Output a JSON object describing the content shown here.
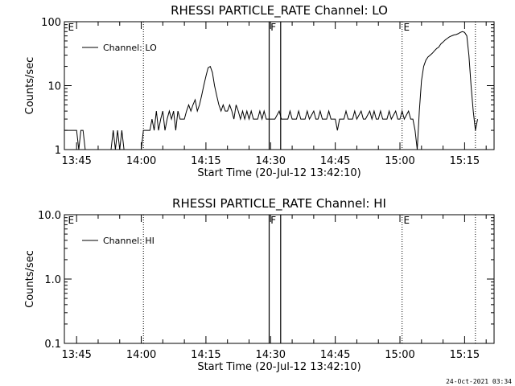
{
  "footer_stamp": "24-Oct-2021 03:34",
  "chart_data": [
    {
      "type": "line",
      "title": "RHESSI PARTICLE_RATE Channel: LO",
      "xlabel": "Start Time (20-Jul-12 13:42:10)",
      "ylabel": "Counts/sec",
      "yscale": "log",
      "ylim": [
        1,
        100
      ],
      "y_ticks": [
        1,
        10,
        100
      ],
      "y_tick_labels": [
        "1",
        "10",
        "100"
      ],
      "xlim": [
        "13:42:10",
        "15:21:50"
      ],
      "x_ticks": [
        "13:45",
        "14:00",
        "14:15",
        "14:30",
        "14:45",
        "15:00",
        "15:15"
      ],
      "legend": {
        "placement": "top-left",
        "entries": [
          "Channel: LO"
        ]
      },
      "dotted_markers": [
        "14:00:30",
        "15:00:30",
        "15:17:30"
      ],
      "solid_markers": [
        "14:29:40",
        "14:32:20"
      ],
      "edge_labels": [
        {
          "text": "E",
          "at": "13:43:00"
        },
        {
          "text": "F",
          "at": "14:30:00"
        },
        {
          "text": "E",
          "at": "15:00:50"
        }
      ],
      "series": [
        {
          "name": "Channel: LO",
          "points": [
            [
              "13:42:10",
              2
            ],
            [
              "13:45:00",
              2
            ],
            [
              "13:45:30",
              1
            ],
            [
              "13:46:00",
              2
            ],
            [
              "13:46:30",
              2
            ],
            [
              "13:47:00",
              1
            ],
            [
              "13:53:00",
              1
            ],
            [
              "13:53:30",
              2
            ],
            [
              "13:54:00",
              1
            ],
            [
              "13:54:30",
              2
            ],
            [
              "13:55:00",
              1
            ],
            [
              "13:55:30",
              2
            ],
            [
              "13:56:00",
              1
            ],
            [
              "14:00:00",
              1
            ],
            [
              "14:00:30",
              2
            ],
            [
              "14:02:00",
              2
            ],
            [
              "14:02:30",
              3
            ],
            [
              "14:03:00",
              2
            ],
            [
              "14:03:30",
              4
            ],
            [
              "14:04:00",
              2
            ],
            [
              "14:04:30",
              3
            ],
            [
              "14:05:00",
              4
            ],
            [
              "14:05:30",
              2
            ],
            [
              "14:06:00",
              3
            ],
            [
              "14:06:30",
              4
            ],
            [
              "14:07:00",
              3
            ],
            [
              "14:07:30",
              4
            ],
            [
              "14:08:00",
              2
            ],
            [
              "14:08:30",
              4
            ],
            [
              "14:09:00",
              3
            ],
            [
              "14:10:00",
              3
            ],
            [
              "14:10:30",
              4
            ],
            [
              "14:11:00",
              5
            ],
            [
              "14:11:30",
              4
            ],
            [
              "14:12:00",
              5
            ],
            [
              "14:12:30",
              6
            ],
            [
              "14:13:00",
              4
            ],
            [
              "14:13:30",
              5
            ],
            [
              "14:14:00",
              7
            ],
            [
              "14:14:30",
              10
            ],
            [
              "14:15:00",
              14
            ],
            [
              "14:15:30",
              19
            ],
            [
              "14:16:00",
              20
            ],
            [
              "14:16:30",
              16
            ],
            [
              "14:17:00",
              10
            ],
            [
              "14:17:30",
              7
            ],
            [
              "14:18:00",
              5
            ],
            [
              "14:18:30",
              4
            ],
            [
              "14:19:00",
              5
            ],
            [
              "14:19:30",
              4
            ],
            [
              "14:20:00",
              4
            ],
            [
              "14:20:30",
              5
            ],
            [
              "14:21:00",
              4
            ],
            [
              "14:21:30",
              3
            ],
            [
              "14:22:00",
              5
            ],
            [
              "14:22:30",
              4
            ],
            [
              "14:23:00",
              3
            ],
            [
              "14:23:30",
              4
            ],
            [
              "14:24:00",
              3
            ],
            [
              "14:24:30",
              4
            ],
            [
              "14:25:00",
              3
            ],
            [
              "14:25:30",
              4
            ],
            [
              "14:26:00",
              3
            ],
            [
              "14:27:00",
              3
            ],
            [
              "14:27:30",
              4
            ],
            [
              "14:28:00",
              3
            ],
            [
              "14:28:30",
              4
            ],
            [
              "14:29:00",
              3
            ],
            [
              "14:30:00",
              3
            ],
            [
              "14:31:00",
              3
            ],
            [
              "14:32:00",
              4
            ],
            [
              "14:32:30",
              3
            ],
            [
              "14:33:00",
              3
            ],
            [
              "14:34:00",
              3
            ],
            [
              "14:34:30",
              4
            ],
            [
              "14:35:00",
              3
            ],
            [
              "14:36:00",
              3
            ],
            [
              "14:36:30",
              4
            ],
            [
              "14:37:00",
              3
            ],
            [
              "14:38:00",
              3
            ],
            [
              "14:38:30",
              4
            ],
            [
              "14:39:00",
              3
            ],
            [
              "14:40:00",
              4
            ],
            [
              "14:40:30",
              3
            ],
            [
              "14:41:00",
              3
            ],
            [
              "14:41:30",
              4
            ],
            [
              "14:42:00",
              3
            ],
            [
              "14:43:00",
              3
            ],
            [
              "14:43:30",
              4
            ],
            [
              "14:44:00",
              3
            ],
            [
              "14:45:00",
              3
            ],
            [
              "14:45:30",
              2
            ],
            [
              "14:46:00",
              3
            ],
            [
              "14:47:00",
              3
            ],
            [
              "14:47:30",
              4
            ],
            [
              "14:48:00",
              3
            ],
            [
              "14:49:00",
              3
            ],
            [
              "14:49:30",
              4
            ],
            [
              "14:50:00",
              3
            ],
            [
              "14:51:00",
              4
            ],
            [
              "14:51:30",
              3
            ],
            [
              "14:52:00",
              3
            ],
            [
              "14:53:00",
              4
            ],
            [
              "14:53:30",
              3
            ],
            [
              "14:54:00",
              4
            ],
            [
              "14:54:30",
              3
            ],
            [
              "14:55:00",
              3
            ],
            [
              "14:55:30",
              4
            ],
            [
              "14:56:00",
              3
            ],
            [
              "14:57:00",
              3
            ],
            [
              "14:57:30",
              4
            ],
            [
              "14:58:00",
              3
            ],
            [
              "14:59:00",
              4
            ],
            [
              "14:59:30",
              3
            ],
            [
              "15:00:00",
              3
            ],
            [
              "15:00:30",
              4
            ],
            [
              "15:01:00",
              3
            ],
            [
              "15:02:00",
              4
            ],
            [
              "15:02:30",
              3
            ],
            [
              "15:03:00",
              3
            ],
            [
              "15:03:30",
              2
            ],
            [
              "15:04:00",
              1
            ],
            [
              "15:04:30",
              4
            ],
            [
              "15:05:00",
              12
            ],
            [
              "15:05:30",
              20
            ],
            [
              "15:06:00",
              25
            ],
            [
              "15:06:30",
              28
            ],
            [
              "15:07:00",
              30
            ],
            [
              "15:07:30",
              32
            ],
            [
              "15:08:00",
              35
            ],
            [
              "15:08:30",
              38
            ],
            [
              "15:09:00",
              40
            ],
            [
              "15:09:30",
              45
            ],
            [
              "15:10:00",
              48
            ],
            [
              "15:10:30",
              52
            ],
            [
              "15:11:00",
              55
            ],
            [
              "15:11:30",
              58
            ],
            [
              "15:12:00",
              60
            ],
            [
              "15:12:30",
              62
            ],
            [
              "15:13:00",
              63
            ],
            [
              "15:13:30",
              65
            ],
            [
              "15:14:00",
              68
            ],
            [
              "15:14:30",
              70
            ],
            [
              "15:15:00",
              68
            ],
            [
              "15:15:30",
              60
            ],
            [
              "15:16:00",
              30
            ],
            [
              "15:16:30",
              10
            ],
            [
              "15:17:00",
              4
            ],
            [
              "15:17:30",
              2
            ],
            [
              "15:18:00",
              3
            ]
          ]
        }
      ]
    },
    {
      "type": "line",
      "title": "RHESSI PARTICLE_RATE Channel: HI",
      "xlabel": "Start Time (20-Jul-12 13:42:10)",
      "ylabel": "Counts/sec",
      "yscale": "log",
      "ylim": [
        0.1,
        10
      ],
      "y_ticks": [
        0.1,
        1,
        10
      ],
      "y_tick_labels": [
        "0.1",
        "1.0",
        "10.0"
      ],
      "xlim": [
        "13:42:10",
        "15:21:50"
      ],
      "x_ticks": [
        "13:45",
        "14:00",
        "14:15",
        "14:30",
        "14:45",
        "15:00",
        "15:15"
      ],
      "legend": {
        "placement": "top-left",
        "entries": [
          "Channel: HI"
        ]
      },
      "dotted_markers": [
        "14:00:30",
        "15:00:30",
        "15:17:30"
      ],
      "solid_markers": [
        "14:29:40",
        "14:32:20"
      ],
      "edge_labels": [
        {
          "text": "E",
          "at": "13:43:00"
        },
        {
          "text": "F",
          "at": "14:30:00"
        },
        {
          "text": "E",
          "at": "15:00:50"
        }
      ],
      "series": [
        {
          "name": "Channel: HI",
          "points": []
        }
      ]
    }
  ]
}
